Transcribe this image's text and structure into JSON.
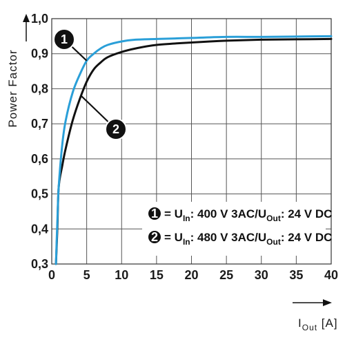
{
  "chart_data": {
    "type": "line",
    "ylabel": "Power Factor",
    "xlabel": {
      "main": "I",
      "sub": "Out",
      "unit": " [A]"
    },
    "xlim": [
      0,
      40
    ],
    "ylim": [
      0.3,
      1.0
    ],
    "x_ticks": [
      "0",
      "5",
      "10",
      "15",
      "20",
      "25",
      "30",
      "35",
      "40"
    ],
    "y_ticks": [
      "0,3",
      "0,4",
      "0,5",
      "0,6",
      "0,7",
      "0,8",
      "0,9",
      "1,0"
    ],
    "grid": true,
    "series": [
      {
        "marker": "1",
        "color": "#2a9fd8",
        "x": [
          0.6,
          0.8,
          1.0,
          1.5,
          2.0,
          3.0,
          4.0,
          5.0,
          6.0,
          7.0,
          8.0,
          10.0,
          12.0,
          15.0,
          20.0,
          25.0,
          30.0,
          35.0,
          40.0
        ],
        "y": [
          0.3,
          0.42,
          0.52,
          0.64,
          0.71,
          0.79,
          0.84,
          0.88,
          0.9,
          0.915,
          0.925,
          0.935,
          0.94,
          0.942,
          0.945,
          0.948,
          0.948,
          0.949,
          0.95
        ]
      },
      {
        "marker": "2",
        "color": "#111111",
        "x": [
          0.6,
          0.8,
          1.0,
          1.5,
          2.0,
          3.0,
          4.0,
          5.0,
          6.0,
          7.0,
          8.0,
          10.0,
          12.0,
          15.0,
          20.0,
          25.0,
          30.0,
          35.0,
          40.0
        ],
        "y": [
          0.3,
          0.4,
          0.52,
          0.58,
          0.63,
          0.71,
          0.77,
          0.82,
          0.855,
          0.875,
          0.89,
          0.905,
          0.915,
          0.925,
          0.932,
          0.937,
          0.94,
          0.941,
          0.942
        ]
      }
    ],
    "legend": {
      "position": "bottom-right",
      "entries": [
        {
          "marker": "1",
          "parts": [
            "= U",
            "In",
            ": 400 V 3AC/U",
            "Out",
            ": 24 V DC"
          ]
        },
        {
          "marker": "2",
          "parts": [
            "= U",
            "In",
            ": 480 V 3AC/U",
            "Out",
            ": 24 V DC"
          ]
        }
      ]
    }
  }
}
